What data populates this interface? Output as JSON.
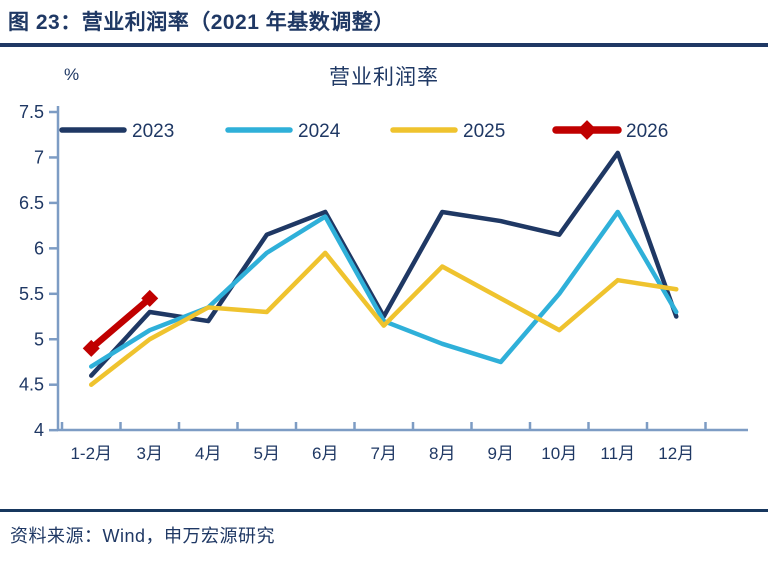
{
  "header": {
    "title": "图 23：营业利润率（2021 年基数调整）"
  },
  "footer": {
    "source": "资料来源：Wind，申万宏源研究"
  },
  "colors": {
    "text": "#1F3864",
    "axis": "#7D9CC4",
    "rule": "#17375E",
    "background": "#FFFFFF"
  },
  "chart_data": {
    "type": "line",
    "title": "营业利润率",
    "unit_label": "%",
    "categories": [
      "1-2月",
      "3月",
      "4月",
      "5月",
      "6月",
      "7月",
      "8月",
      "9月",
      "10月",
      "11月",
      "12月"
    ],
    "series": [
      {
        "name": "2023",
        "color": "#1F3864",
        "line_width": 4.5,
        "marker": "none",
        "values": [
          4.6,
          5.3,
          5.2,
          6.15,
          6.4,
          5.25,
          6.4,
          6.3,
          6.15,
          7.05,
          5.25
        ]
      },
      {
        "name": "2024",
        "color": "#2FB0D9",
        "line_width": 4.5,
        "marker": "none",
        "values": [
          4.7,
          5.1,
          5.35,
          5.95,
          6.35,
          5.2,
          4.95,
          4.75,
          5.5,
          6.4,
          5.3
        ]
      },
      {
        "name": "2025",
        "color": "#EFC32E",
        "line_width": 4.5,
        "marker": "none",
        "values": [
          4.5,
          5.0,
          5.35,
          5.3,
          5.95,
          5.15,
          5.8,
          5.45,
          5.1,
          5.65,
          5.55
        ]
      },
      {
        "name": "2026",
        "color": "#C00000",
        "line_width": 6.5,
        "marker": "diamond",
        "values": [
          4.9,
          5.45,
          null,
          null,
          null,
          null,
          null,
          null,
          null,
          null,
          null
        ]
      }
    ],
    "ylim": [
      4,
      7.5
    ],
    "ytick_step": 0.5,
    "yticks": [
      "7.5",
      "7",
      "6.5",
      "6",
      "5.5",
      "5",
      "4.5",
      "4"
    ],
    "xlabel": "",
    "ylabel": "%",
    "grid": false,
    "legend_position": "top"
  }
}
